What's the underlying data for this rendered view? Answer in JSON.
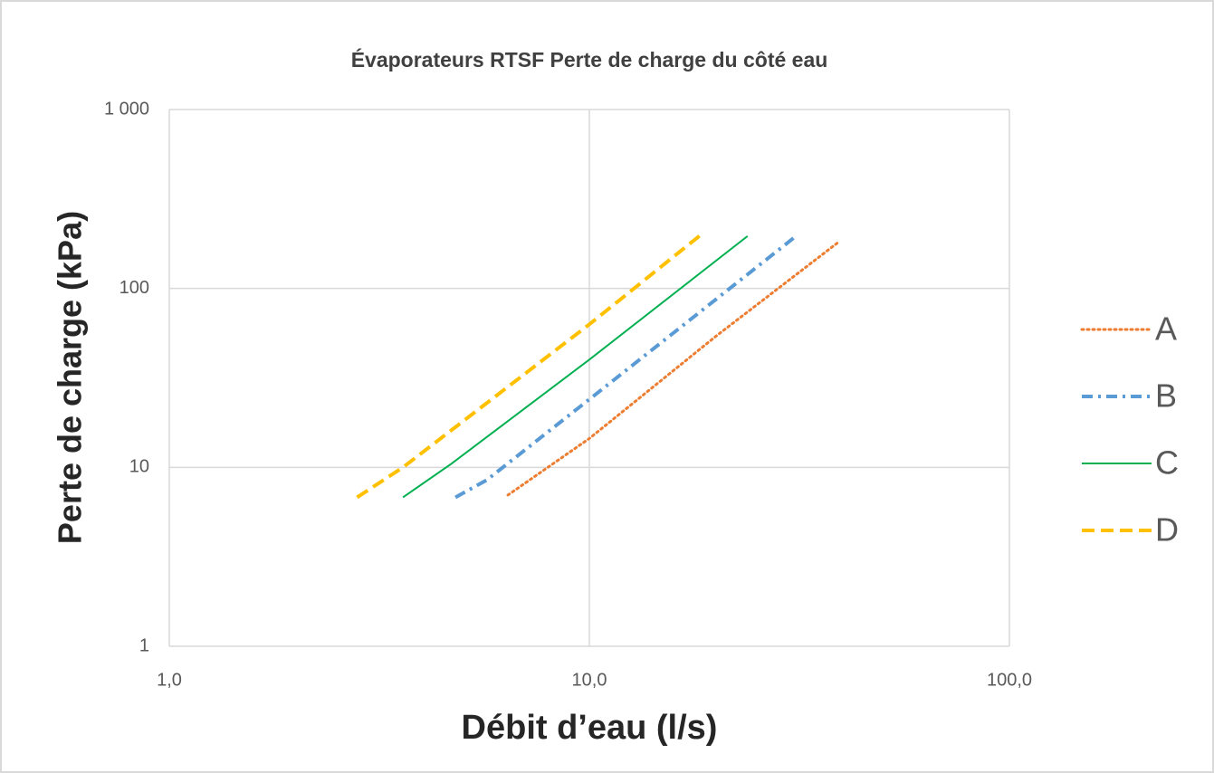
{
  "chart_data": {
    "type": "line",
    "title": "Évaporateurs RTSF Perte de charge du côté eau",
    "xlabel": "Débit d’eau (l/s)",
    "ylabel": "Perte de charge (kPa)",
    "xlog": true,
    "ylog": true,
    "grid": true,
    "legend": "right",
    "xlim": [
      1,
      100
    ],
    "xticks": [
      {
        "value": 1,
        "label": "1,0"
      },
      {
        "value": 10,
        "label": "10,0"
      },
      {
        "value": 100,
        "label": "100,0"
      }
    ],
    "ylim": [
      1,
      1000
    ],
    "yticks": [
      1,
      10,
      100,
      {
        "value": 1000,
        "label": "1 000"
      }
    ],
    "series": [
      {
        "name": "A",
        "color": "#ED7D31",
        "dash": "dotted",
        "x": [
          6.4,
          10,
          20,
          39
        ],
        "values": [
          7,
          14.5,
          54,
          180
        ]
      },
      {
        "name": "B",
        "color": "#5B9BD5",
        "dash": "dashdot",
        "x": [
          4.8,
          5.7,
          10,
          30.7
        ],
        "values": [
          6.8,
          8.5,
          24,
          192
        ]
      },
      {
        "name": "C",
        "color": "#00B050",
        "dash": "solid",
        "x": [
          3.6,
          4.7,
          10,
          23.8
        ],
        "values": [
          6.8,
          10.5,
          40,
          196
        ]
      },
      {
        "name": "D",
        "color": "#FFC000",
        "dash": "dashed",
        "x": [
          2.8,
          3.6,
          10,
          18.6
        ],
        "values": [
          6.8,
          10,
          63,
          203
        ]
      }
    ]
  }
}
